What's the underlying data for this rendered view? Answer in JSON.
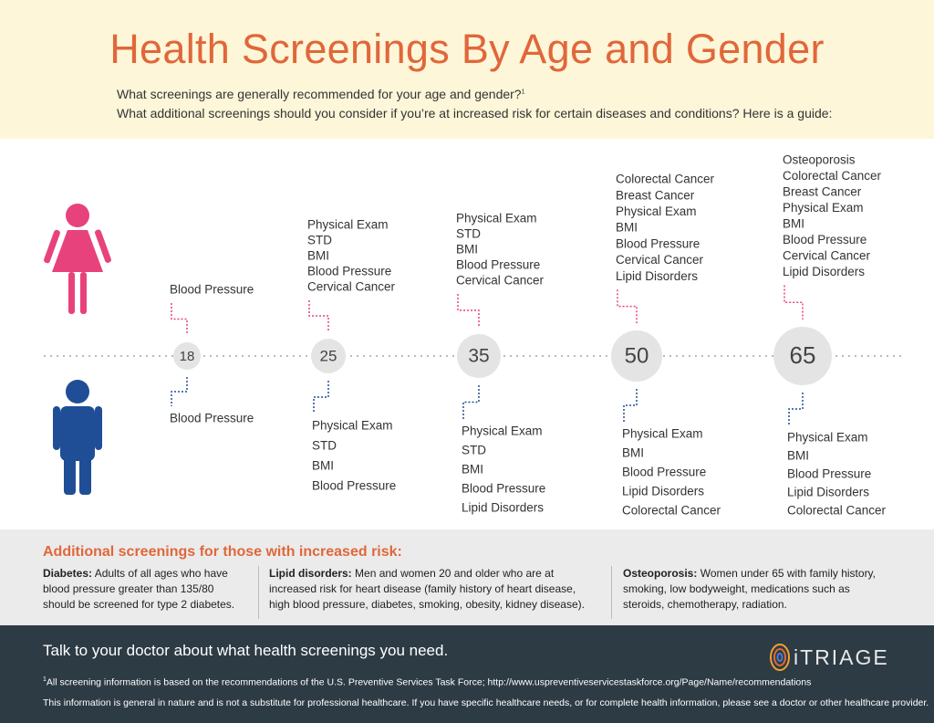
{
  "header": {
    "title": "Health Screenings By Age and Gender",
    "subtitle_lines": [
      "What screenings are generally recommended for your age and gender?",
      "What additional screenings should you consider if you’re at increased risk for certain diseases and conditions? Here is a guide:"
    ],
    "subtitle_note": "1"
  },
  "timeline": [
    {
      "age": 18,
      "women": [
        "Blood Pressure"
      ],
      "men": [
        "Blood Pressure"
      ]
    },
    {
      "age": 25,
      "women": [
        "Physical Exam",
        "STD",
        "BMI",
        "Blood Pressure",
        "Cervical Cancer"
      ],
      "men": [
        "Physical Exam",
        "STD",
        "BMI",
        "Blood Pressure"
      ]
    },
    {
      "age": 35,
      "women": [
        "Physical Exam",
        "STD",
        "BMI",
        "Blood Pressure",
        "Cervical Cancer"
      ],
      "men": [
        "Physical Exam",
        "STD",
        "BMI",
        "Blood Pressure",
        "Lipid Disorders"
      ]
    },
    {
      "age": 50,
      "women": [
        "Colorectal Cancer",
        "Breast Cancer",
        "Physical Exam",
        "BMI",
        "Blood Pressure",
        "Cervical Cancer",
        "Lipid Disorders"
      ],
      "men": [
        "Physical Exam",
        "BMI",
        "Blood Pressure",
        "Lipid Disorders",
        "Colorectal Cancer"
      ]
    },
    {
      "age": 65,
      "women": [
        "Osteoporosis",
        "Colorectal Cancer",
        "Breast Cancer",
        "Physical Exam",
        "BMI",
        "Blood Pressure",
        "Cervical Cancer",
        "Lipid Disorders"
      ],
      "men": [
        "Physical Exam",
        "BMI",
        "Blood Pressure",
        "Lipid Disorders",
        "Colorectal Cancer"
      ]
    }
  ],
  "additional": {
    "title": "Additional screenings for those with increased risk:",
    "items": [
      {
        "term": "Diabetes:",
        "text": "Adults of all ages who have blood pressure greater than 135/80 should be screened for type 2 diabetes."
      },
      {
        "term": "Lipid disorders:",
        "text": "Men and women 20 and older who are at increased risk for heart disease (family history of heart disease, high blood pressure, diabetes, smoking, obesity, kidney disease)."
      },
      {
        "term": "Osteoporosis:",
        "text": "Women under 65 with family history, smoking, low bodyweight, medications such as steroids, chemotherapy, radiation."
      }
    ]
  },
  "footer": {
    "cta": "Talk to your doctor about what health screenings you need.",
    "brand": "iTRIAGE",
    "footnote_mark": "1",
    "footnote": "All screening information is based on the recommendations of the U.S. Preventive Services Task Force; http://www.uspreventiveservicestaskforce.org/Page/Name/recommendations",
    "disclaimer": "This information is general in nature and is not a substitute for professional healthcare. If you have specific healthcare needs, or for complete health information, please see a doctor or other healthcare provider."
  }
}
